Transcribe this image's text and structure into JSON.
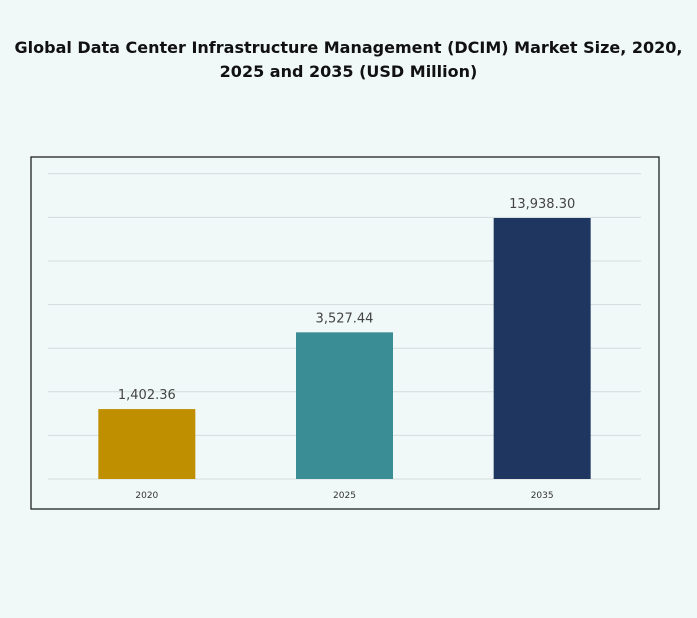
{
  "chart_data": {
    "type": "bar",
    "title": "Global Data Center Infrastructure  Management (DCIM) Market Size, 2020, 2025 and 2035 (USD Million)",
    "title_lines": [
      "Global Data Center Infrastructure  Management (DCIM) Market Size, 2020,",
      "2025 and 2035 (USD Million)"
    ],
    "categories": [
      "2020",
      "2025",
      "2035"
    ],
    "values": [
      1402.36,
      3527.44,
      13938.3
    ],
    "data_labels": [
      "1,402.36",
      "3,527.44",
      "13,938.30"
    ],
    "colors": [
      "#c08f00",
      "#3a8c95",
      "#1f3660"
    ],
    "xlabel": "",
    "ylabel": "",
    "grid": true,
    "legend": "none"
  }
}
